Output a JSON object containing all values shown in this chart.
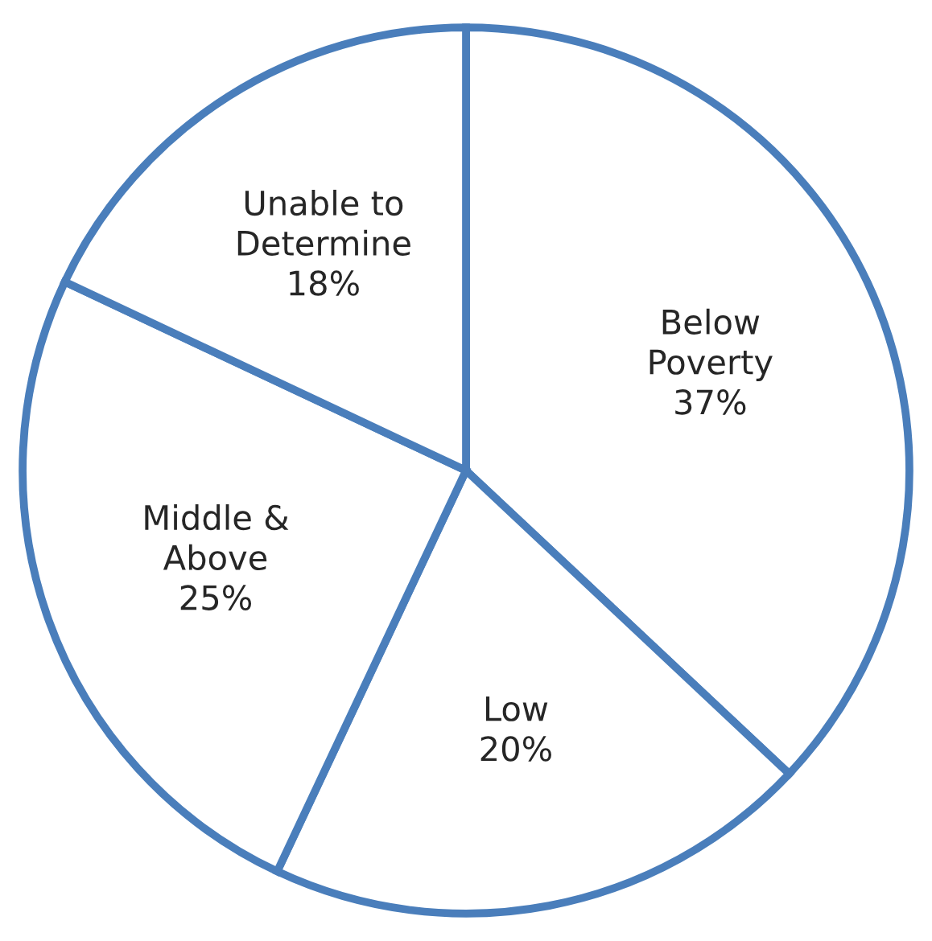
{
  "chart_data": {
    "type": "pie",
    "categories": [
      "Below Poverty",
      "Low",
      "Middle & Above",
      "Unable to Determine"
    ],
    "values": [
      37,
      20,
      25,
      18
    ],
    "value_labels": [
      "37%",
      "20%",
      "25%",
      "18%"
    ],
    "colors": [
      "#ffffff",
      "#ffffff",
      "#ffffff",
      "#ffffff"
    ]
  }
}
